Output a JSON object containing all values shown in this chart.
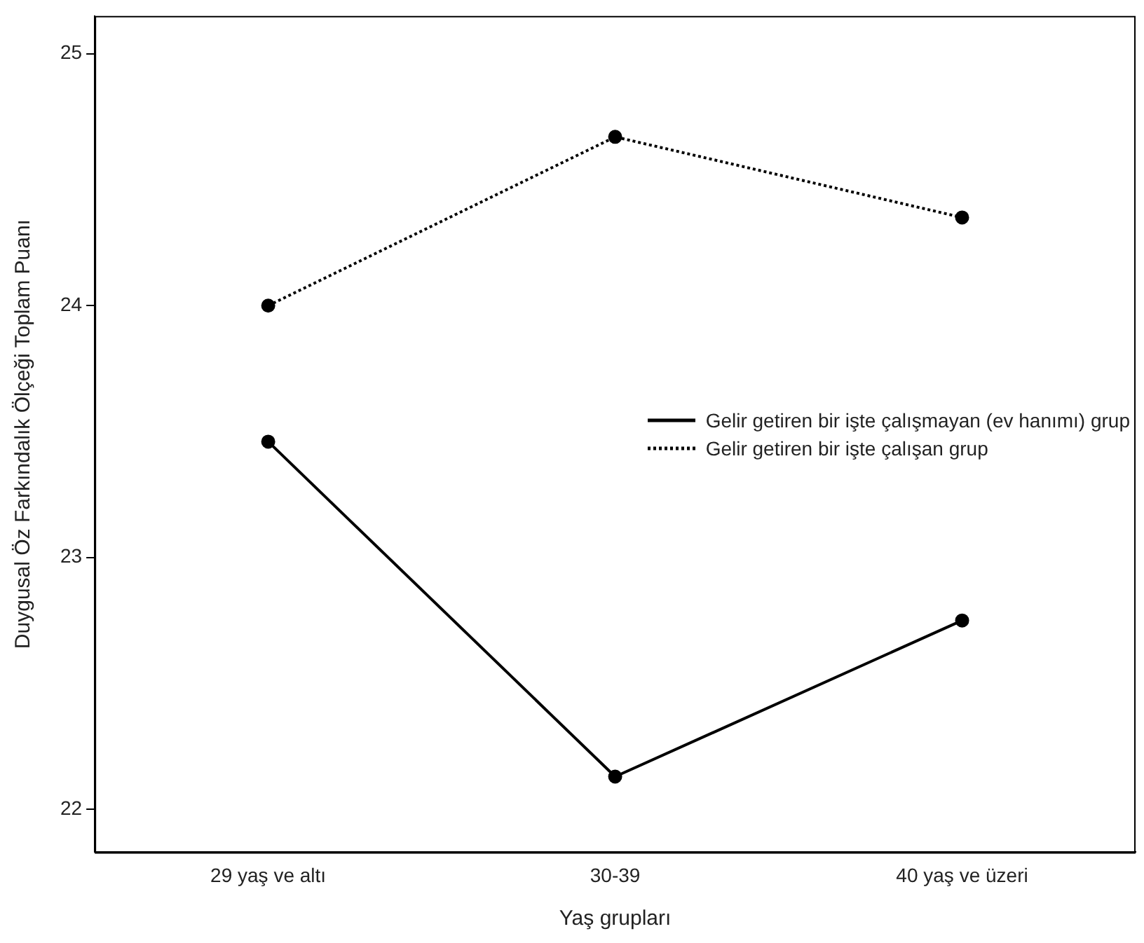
{
  "chart_data": {
    "type": "line",
    "xlabel": "Yaş grupları",
    "ylabel": "Duygusal Öz Farkındalık Ölçeği Toplam Puanı",
    "categories": [
      "29 yaş ve altı",
      "30-39",
      "40 yaş ve üzeri"
    ],
    "series": [
      {
        "name": "Gelir getiren bir işte çalışmayan (ev hanımı) grup",
        "color": "#000000",
        "values": [
          23.46,
          22.13,
          22.75
        ],
        "line_style": "solid"
      },
      {
        "name": "Gelir getiren bir işte çalışan grup",
        "color": "#000000",
        "values": [
          24.0,
          24.67,
          24.35
        ],
        "line_style": "dotted"
      }
    ],
    "ylim": [
      21.83,
      25.15
    ],
    "yticks": [
      22,
      23,
      24,
      25
    ],
    "grid": false,
    "legend": "right",
    "marker": "circle"
  }
}
